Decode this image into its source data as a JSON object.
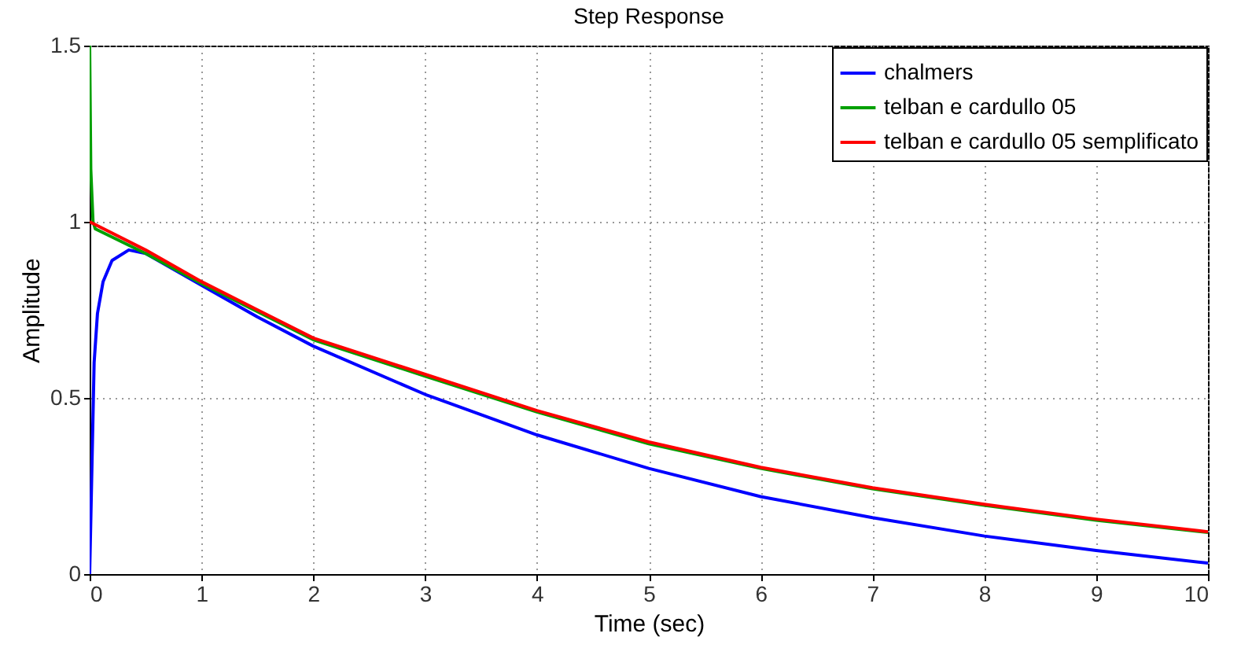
{
  "chart_data": {
    "type": "line",
    "title": "Step Response",
    "xlabel": "Time (sec)",
    "ylabel": "Amplitude",
    "xlim": [
      0,
      10
    ],
    "ylim": [
      0,
      1.5
    ],
    "xticks": [
      0,
      1,
      2,
      3,
      4,
      5,
      6,
      7,
      8,
      9,
      10
    ],
    "yticks": [
      0,
      0.5,
      1,
      1.5
    ],
    "grid": true,
    "legend": "top right",
    "line_style": "solid",
    "marker": "none",
    "series": [
      {
        "name": "chalmers",
        "color": "#0000ff",
        "x": [
          0,
          0.02,
          0.04,
          0.07,
          0.12,
          0.2,
          0.35,
          0.5,
          1,
          1.5,
          2,
          3,
          4,
          5,
          6,
          7,
          8,
          9,
          10
        ],
        "values": [
          0,
          0.3,
          0.6,
          0.74,
          0.83,
          0.89,
          0.92,
          0.91,
          0.82,
          0.73,
          0.647,
          0.51,
          0.395,
          0.3,
          0.22,
          0.16,
          0.108,
          0.067,
          0.031
        ]
      },
      {
        "name": "telban e cardullo 05",
        "color": "#00a000",
        "x": [
          0,
          0.01,
          0.03,
          0.05,
          0.5,
          1,
          1.5,
          2,
          3,
          4,
          5,
          6,
          7,
          8,
          9,
          10
        ],
        "values": [
          1.5,
          1.15,
          1.0,
          0.98,
          0.91,
          0.825,
          0.745,
          0.665,
          0.562,
          0.46,
          0.37,
          0.3,
          0.242,
          0.195,
          0.153,
          0.118
        ]
      },
      {
        "name": "telban e cardullo 05 semplificato",
        "color": "#ff0000",
        "x": [
          0,
          0.5,
          1,
          1.5,
          2,
          3,
          4,
          5,
          6,
          7,
          8,
          9,
          10
        ],
        "values": [
          1.0,
          0.92,
          0.83,
          0.75,
          0.67,
          0.567,
          0.464,
          0.375,
          0.303,
          0.245,
          0.198,
          0.156,
          0.12
        ]
      }
    ]
  }
}
